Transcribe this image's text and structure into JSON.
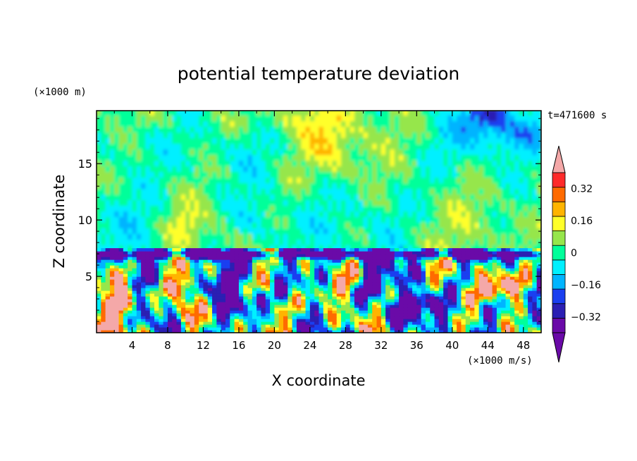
{
  "chart_data": {
    "type": "heatmap",
    "title": "potential temperature deviation",
    "xlabel": "X coordinate",
    "ylabel": "Z coordinate",
    "x_unit": "(×1000 m/s)",
    "y_unit": "(×1000 m)",
    "annotation": "t=471600 s",
    "xlim": [
      0,
      50
    ],
    "ylim": [
      0,
      19.7
    ],
    "x_ticks": [
      "4",
      "8",
      "12",
      "16",
      "20",
      "24",
      "28",
      "32",
      "36",
      "40",
      "44",
      "48"
    ],
    "x_tick_values": [
      4,
      8,
      12,
      16,
      20,
      24,
      28,
      32,
      36,
      40,
      44,
      48
    ],
    "y_ticks": [
      "5",
      "10",
      "15"
    ],
    "y_tick_values": [
      5,
      10,
      15
    ],
    "colorbar": {
      "labels": [
        "0.32",
        "0.16",
        "0",
        "−0.16",
        "−0.32"
      ],
      "label_values": [
        0.32,
        0.16,
        0,
        -0.16,
        -0.32
      ],
      "levels": [
        -0.4,
        -0.32,
        -0.24,
        -0.16,
        -0.08,
        0,
        0.08,
        0.16,
        0.24,
        0.32,
        0.4
      ],
      "colors": [
        "#6a0aa8",
        "#2b1fb3",
        "#1a3ff0",
        "#00b4ff",
        "#00f0ff",
        "#00ff9a",
        "#96e64b",
        "#ffff2a",
        "#ffb400",
        "#ff6a00",
        "#ff2a2a"
      ],
      "under_color": "#6a0aa8",
      "over_color": "#f4a8a8"
    },
    "boundary_layer_top": 7.3
  }
}
